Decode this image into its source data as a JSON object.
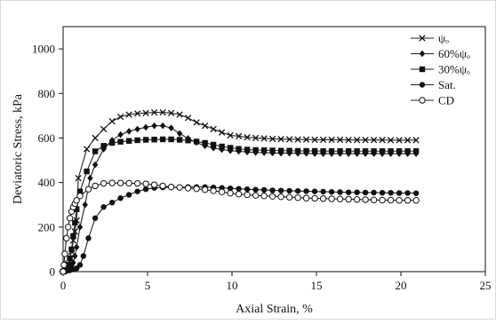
{
  "chart_data": {
    "type": "line",
    "title": "",
    "xlabel": "Axial Strain, %",
    "ylabel": "Deviatoric Stress, kPa",
    "xlim": [
      0,
      25
    ],
    "ylim": [
      0,
      1100
    ],
    "xticks": [
      0,
      5,
      10,
      15,
      20,
      25
    ],
    "yticks": [
      0,
      200,
      400,
      600,
      800,
      1000
    ],
    "grid": false,
    "legend_position": "top-right",
    "series": [
      {
        "name": "ψₒ",
        "marker": "x",
        "points": [
          [
            0,
            0
          ],
          [
            0.1,
            10
          ],
          [
            0.2,
            20
          ],
          [
            0.3,
            35
          ],
          [
            0.4,
            60
          ],
          [
            0.5,
            90
          ],
          [
            0.6,
            140
          ],
          [
            0.7,
            180
          ],
          [
            0.8,
            230
          ],
          [
            0.9,
            420
          ],
          [
            1.4,
            550
          ],
          [
            1.9,
            600
          ],
          [
            2.4,
            640
          ],
          [
            2.9,
            675
          ],
          [
            3.4,
            695
          ],
          [
            3.9,
            705
          ],
          [
            4.4,
            710
          ],
          [
            4.9,
            712
          ],
          [
            5.4,
            715
          ],
          [
            5.9,
            715
          ],
          [
            6.4,
            712
          ],
          [
            6.9,
            705
          ],
          [
            7.4,
            690
          ],
          [
            7.9,
            670
          ],
          [
            8.4,
            655
          ],
          [
            8.9,
            640
          ],
          [
            9.4,
            625
          ],
          [
            9.9,
            612
          ],
          [
            10.4,
            608
          ],
          [
            10.9,
            603
          ],
          [
            11.4,
            600
          ],
          [
            11.9,
            598
          ],
          [
            12.4,
            596
          ],
          [
            12.9,
            595
          ],
          [
            13.4,
            594
          ],
          [
            13.9,
            593
          ],
          [
            14.4,
            593
          ],
          [
            14.9,
            592
          ],
          [
            15.4,
            592
          ],
          [
            15.9,
            592
          ],
          [
            16.4,
            592
          ],
          [
            16.9,
            591
          ],
          [
            17.4,
            591
          ],
          [
            17.9,
            591
          ],
          [
            18.4,
            591
          ],
          [
            18.9,
            591
          ],
          [
            19.4,
            590
          ],
          [
            19.9,
            590
          ],
          [
            20.4,
            590
          ],
          [
            20.9,
            590
          ]
        ]
      },
      {
        "name": "60%ψₒ",
        "marker": "diamond",
        "points": [
          [
            0,
            0
          ],
          [
            0.1,
            5
          ],
          [
            0.2,
            8
          ],
          [
            0.3,
            12
          ],
          [
            0.4,
            18
          ],
          [
            0.5,
            25
          ],
          [
            0.6,
            40
          ],
          [
            0.7,
            70
          ],
          [
            0.8,
            110
          ],
          [
            1.0,
            200
          ],
          [
            1.3,
            300
          ],
          [
            1.6,
            420
          ],
          [
            1.9,
            480
          ],
          [
            2.4,
            550
          ],
          [
            2.9,
            590
          ],
          [
            3.4,
            615
          ],
          [
            3.9,
            630
          ],
          [
            4.4,
            640
          ],
          [
            4.9,
            648
          ],
          [
            5.4,
            655
          ],
          [
            5.9,
            655
          ],
          [
            6.4,
            645
          ],
          [
            6.9,
            620
          ],
          [
            7.4,
            598
          ],
          [
            7.9,
            580
          ],
          [
            8.4,
            565
          ],
          [
            8.9,
            555
          ],
          [
            9.4,
            548
          ],
          [
            9.9,
            543
          ],
          [
            10.4,
            540
          ],
          [
            10.9,
            537
          ],
          [
            11.4,
            535
          ],
          [
            11.9,
            534
          ],
          [
            12.4,
            533
          ],
          [
            12.9,
            532
          ],
          [
            13.4,
            532
          ],
          [
            13.9,
            531
          ],
          [
            14.4,
            531
          ],
          [
            14.9,
            530
          ],
          [
            15.4,
            530
          ],
          [
            15.9,
            530
          ],
          [
            16.4,
            530
          ],
          [
            16.9,
            530
          ],
          [
            17.4,
            530
          ],
          [
            17.9,
            530
          ],
          [
            18.4,
            530
          ],
          [
            18.9,
            530
          ],
          [
            19.4,
            530
          ],
          [
            19.9,
            530
          ],
          [
            20.4,
            530
          ],
          [
            20.9,
            530
          ]
        ]
      },
      {
        "name": "30%ψₒ",
        "marker": "square",
        "points": [
          [
            0,
            0
          ],
          [
            0.1,
            8
          ],
          [
            0.2,
            15
          ],
          [
            0.3,
            30
          ],
          [
            0.4,
            60
          ],
          [
            0.5,
            100
          ],
          [
            0.6,
            160
          ],
          [
            0.7,
            220
          ],
          [
            0.8,
            280
          ],
          [
            1.0,
            360
          ],
          [
            1.4,
            450
          ],
          [
            1.9,
            540
          ],
          [
            2.4,
            565
          ],
          [
            2.9,
            578
          ],
          [
            3.4,
            583
          ],
          [
            3.9,
            587
          ],
          [
            4.4,
            590
          ],
          [
            4.9,
            592
          ],
          [
            5.4,
            593
          ],
          [
            5.9,
            594
          ],
          [
            6.4,
            594
          ],
          [
            6.9,
            592
          ],
          [
            7.4,
            589
          ],
          [
            7.9,
            584
          ],
          [
            8.4,
            578
          ],
          [
            8.9,
            570
          ],
          [
            9.4,
            562
          ],
          [
            9.9,
            556
          ],
          [
            10.4,
            551
          ],
          [
            10.9,
            548
          ],
          [
            11.4,
            546
          ],
          [
            11.9,
            545
          ],
          [
            12.4,
            544
          ],
          [
            12.9,
            543
          ],
          [
            13.4,
            543
          ],
          [
            13.9,
            542
          ],
          [
            14.4,
            542
          ],
          [
            14.9,
            542
          ],
          [
            15.4,
            541
          ],
          [
            15.9,
            541
          ],
          [
            16.4,
            541
          ],
          [
            16.9,
            541
          ],
          [
            17.4,
            541
          ],
          [
            17.9,
            541
          ],
          [
            18.4,
            541
          ],
          [
            18.9,
            541
          ],
          [
            19.4,
            541
          ],
          [
            19.9,
            541
          ],
          [
            20.4,
            541
          ],
          [
            20.9,
            541
          ]
        ]
      },
      {
        "name": "Sat.",
        "marker": "circle",
        "points": [
          [
            0,
            0
          ],
          [
            0.2,
            3
          ],
          [
            0.4,
            6
          ],
          [
            0.6,
            10
          ],
          [
            0.8,
            15
          ],
          [
            1.0,
            30
          ],
          [
            1.2,
            70
          ],
          [
            1.5,
            150
          ],
          [
            1.9,
            240
          ],
          [
            2.4,
            290
          ],
          [
            2.9,
            310
          ],
          [
            3.4,
            330
          ],
          [
            3.9,
            345
          ],
          [
            4.4,
            360
          ],
          [
            4.9,
            370
          ],
          [
            5.4,
            376
          ],
          [
            5.9,
            378
          ],
          [
            6.4,
            378
          ],
          [
            6.9,
            378
          ],
          [
            7.4,
            380
          ],
          [
            7.9,
            380
          ],
          [
            8.4,
            380
          ],
          [
            8.9,
            378
          ],
          [
            9.4,
            376
          ],
          [
            9.9,
            374
          ],
          [
            10.4,
            372
          ],
          [
            10.9,
            370
          ],
          [
            11.4,
            368
          ],
          [
            11.9,
            367
          ],
          [
            12.4,
            365
          ],
          [
            12.9,
            364
          ],
          [
            13.4,
            363
          ],
          [
            13.9,
            362
          ],
          [
            14.4,
            361
          ],
          [
            14.9,
            360
          ],
          [
            15.4,
            359
          ],
          [
            15.9,
            358
          ],
          [
            16.4,
            357
          ],
          [
            16.9,
            356
          ],
          [
            17.4,
            356
          ],
          [
            17.9,
            355
          ],
          [
            18.4,
            355
          ],
          [
            18.9,
            354
          ],
          [
            19.4,
            354
          ],
          [
            19.9,
            353
          ],
          [
            20.4,
            353
          ],
          [
            20.9,
            352
          ]
        ]
      },
      {
        "name": "CD",
        "marker": "open-circle",
        "points": [
          [
            0,
            0
          ],
          [
            0.05,
            30
          ],
          [
            0.1,
            80
          ],
          [
            0.2,
            150
          ],
          [
            0.3,
            200
          ],
          [
            0.4,
            240
          ],
          [
            0.5,
            270
          ],
          [
            0.6,
            290
          ],
          [
            0.7,
            305
          ],
          [
            0.8,
            320
          ],
          [
            1.0,
            340
          ],
          [
            1.5,
            370
          ],
          [
            1.9,
            385
          ],
          [
            2.4,
            396
          ],
          [
            2.9,
            398
          ],
          [
            3.4,
            398
          ],
          [
            3.9,
            397
          ],
          [
            4.4,
            396
          ],
          [
            4.9,
            394
          ],
          [
            5.4,
            390
          ],
          [
            5.9,
            385
          ],
          [
            6.4,
            380
          ],
          [
            6.9,
            378
          ],
          [
            7.4,
            375
          ],
          [
            7.9,
            372
          ],
          [
            8.4,
            368
          ],
          [
            8.9,
            363
          ],
          [
            9.4,
            358
          ],
          [
            9.9,
            352
          ],
          [
            10.4,
            348
          ],
          [
            10.9,
            345
          ],
          [
            11.4,
            342
          ],
          [
            11.9,
            340
          ],
          [
            12.4,
            338
          ],
          [
            12.9,
            336
          ],
          [
            13.4,
            334
          ],
          [
            13.9,
            332
          ],
          [
            14.4,
            330
          ],
          [
            14.9,
            329
          ],
          [
            15.4,
            328
          ],
          [
            15.9,
            327
          ],
          [
            16.4,
            326
          ],
          [
            16.9,
            325
          ],
          [
            17.4,
            324
          ],
          [
            17.9,
            323
          ],
          [
            18.4,
            322
          ],
          [
            18.9,
            321
          ],
          [
            19.4,
            321
          ],
          [
            19.9,
            320
          ],
          [
            20.4,
            320
          ],
          [
            20.9,
            320
          ]
        ]
      }
    ]
  },
  "colors": {
    "line": "#222222",
    "marker": "#111111",
    "frame": "#d9d9d9"
  }
}
